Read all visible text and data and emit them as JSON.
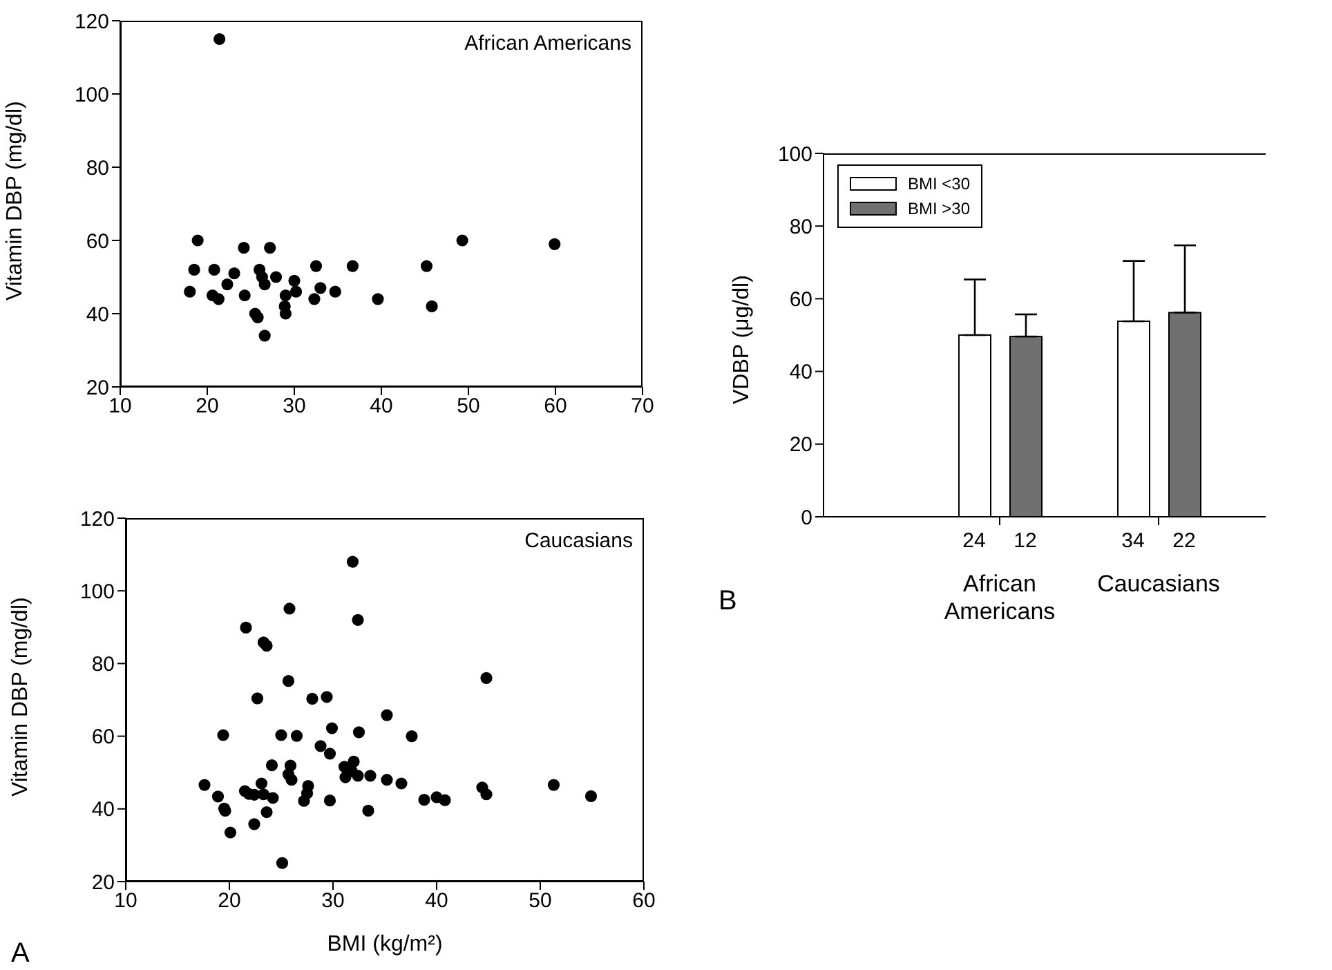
{
  "chart_data": [
    {
      "type": "scatter",
      "ylabel": "Vitamin DBP (mg/dl)",
      "annotations": [
        "African Americans"
      ],
      "color": "#000000",
      "marker": "circle",
      "x": [
        21.4,
        18.9,
        18.5,
        18.0,
        20.8,
        20.6,
        21.3,
        22.3,
        23.1,
        24.2,
        24.3,
        26.0,
        26.3,
        26.6,
        25.5,
        25.8,
        26.6,
        27.2,
        27.9,
        29.0,
        28.9,
        29.0,
        30.0,
        30.2,
        32.5,
        32.3,
        33.0,
        34.7,
        36.7,
        39.6,
        45.2,
        45.8,
        49.3,
        59.9
      ],
      "values": [
        115,
        60,
        52,
        46,
        52,
        45,
        44,
        48,
        51,
        58,
        45,
        52,
        50,
        48,
        40,
        39,
        34,
        58,
        50,
        45,
        42,
        40,
        49,
        46,
        53,
        44,
        47,
        46,
        53,
        44,
        53,
        42,
        60,
        59
      ],
      "xlim": [
        10,
        70
      ],
      "xticks": [
        10,
        20,
        30,
        40,
        50,
        60,
        70
      ],
      "ylim": [
        20,
        120
      ],
      "yticks": [
        20,
        40,
        60,
        80,
        100,
        120
      ]
    },
    {
      "type": "scatter",
      "xlabel": "BMI (kg/m²)",
      "ylabel": "Vitamin DBP (mg/dl)",
      "annotations": [
        "Caucasians",
        "A"
      ],
      "color": "#000000",
      "marker": "circle",
      "x": [
        17.6,
        18.9,
        19.4,
        19.5,
        19.6,
        20.1,
        21.6,
        21.5,
        21.9,
        22.4,
        22.4,
        22.7,
        23.3,
        23.6,
        23.1,
        23.3,
        23.6,
        24.1,
        24.2,
        25.0,
        25.1,
        25.8,
        25.7,
        25.9,
        25.7,
        26.0,
        26.5,
        27.2,
        27.6,
        27.5,
        28.0,
        28.8,
        29.4,
        29.7,
        29.7,
        29.9,
        31.1,
        31.2,
        31.9,
        32.0,
        31.8,
        32.4,
        32.5,
        32.4,
        33.4,
        33.6,
        35.2,
        35.2,
        36.6,
        37.6,
        38.8,
        40.0,
        40.8,
        44.4,
        44.8,
        44.8,
        51.3,
        54.9
      ],
      "values": [
        46.6,
        43.4,
        60.3,
        40.1,
        39.5,
        33.5,
        89.9,
        44.9,
        44.1,
        43.9,
        35.8,
        70.4,
        85.8,
        84.9,
        47,
        44,
        39.1,
        52,
        43,
        60.3,
        25.1,
        95.1,
        75.2,
        51.9,
        49.5,
        48,
        60.1,
        42.2,
        46.3,
        44.3,
        70.3,
        57.3,
        70.8,
        55.2,
        42.3,
        62.2,
        51.6,
        48.7,
        108,
        53,
        50.4,
        92,
        61.1,
        49.1,
        39.5,
        49.1,
        65.8,
        48,
        47,
        60,
        42.5,
        43.2,
        42.4,
        45.9,
        76,
        44,
        46.6,
        43.5
      ],
      "xlim": [
        10,
        60
      ],
      "xticks": [
        10,
        20,
        30,
        40,
        50,
        60
      ],
      "ylim": [
        20,
        120
      ],
      "yticks": [
        20,
        40,
        60,
        80,
        100,
        120
      ]
    },
    {
      "type": "bar",
      "ylabel": "VDBP (μg/dl)",
      "legend": "top left",
      "annotations": [
        "24",
        "12",
        "34",
        "22",
        "B"
      ],
      "categories": [
        "African Americans",
        "Caucasians"
      ],
      "series": [
        {
          "name": "BMI <30",
          "color": "#ffffff",
          "values": [
            50,
            53.8
          ],
          "errors": [
            [
              50,
              65.3
            ],
            [
              53.8,
              70.4
            ]
          ]
        },
        {
          "name": "BMI >30",
          "color": "#707070",
          "values": [
            49.6,
            56.2
          ],
          "errors": [
            [
              49.6,
              55.7
            ],
            [
              56.2,
              74.7
            ]
          ]
        }
      ],
      "ylim": [
        0,
        100
      ],
      "yticks": [
        0,
        20,
        40,
        60,
        80,
        100
      ]
    }
  ]
}
